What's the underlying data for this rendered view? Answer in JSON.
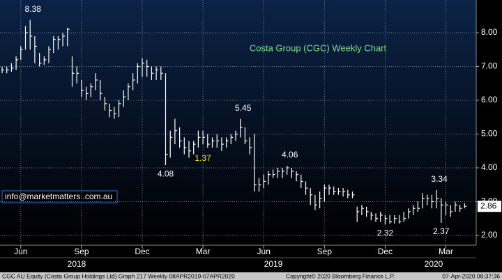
{
  "chart_data": {
    "type": "hlc",
    "title": "Costa Group (CGC) Weekly Chart",
    "annotations": [
      "1.37"
    ],
    "watermark": "info@marketmatters..com.au",
    "footer_left": "CGC AU Equity (Costa Group Holdings Ltd) Graph 217  Weekly 08APR2019-07APR2020",
    "footer_center": "Copyright© 2020 Bloomberg Finance L.P.",
    "footer_right": "07-Apr-2020 08:37:36",
    "x_group_labels": [
      "2018",
      "2019",
      "2020"
    ],
    "categories": [
      null,
      null,
      null,
      null,
      "Jun",
      null,
      null,
      null,
      null,
      null,
      null,
      null,
      null,
      null,
      null,
      null,
      null,
      "Sep",
      null,
      null,
      null,
      null,
      null,
      null,
      null,
      null,
      null,
      null,
      null,
      null,
      "Dec",
      null,
      null,
      null,
      null,
      null,
      null,
      null,
      null,
      null,
      null,
      null,
      null,
      "Mar",
      null,
      null,
      null,
      null,
      null,
      null,
      null,
      null,
      null,
      null,
      null,
      null,
      "Jun",
      null,
      null,
      null,
      null,
      null,
      null,
      null,
      null,
      null,
      null,
      null,
      null,
      "Sep",
      null,
      null,
      null,
      null,
      null,
      null,
      null,
      null,
      null,
      null,
      null,
      null,
      "Dec",
      null,
      null,
      null,
      null,
      null,
      null,
      null,
      null,
      null,
      null,
      null,
      null,
      "Mar",
      null,
      null,
      null,
      null
    ],
    "series": [
      {
        "name": "CGC AU Equity",
        "color": "#ffffff",
        "high": [
          7.0,
          7.0,
          7.1,
          7.3,
          7.6,
          8.2,
          8.38,
          7.9,
          7.4,
          7.3,
          7.6,
          7.9,
          7.9,
          8.0,
          8.15,
          7.3,
          7.0,
          6.6,
          6.4,
          6.5,
          6.8,
          6.6,
          6.1,
          5.9,
          5.8,
          6.0,
          6.3,
          6.5,
          6.8,
          7.1,
          7.25,
          7.2,
          7.0,
          7.0,
          7.0,
          6.8,
          5.1,
          5.45,
          5.2,
          4.9,
          4.8,
          4.8,
          5.1,
          5.1,
          5.0,
          4.9,
          5.0,
          4.9,
          4.9,
          5.0,
          5.1,
          5.45,
          5.2,
          4.9,
          5.0,
          3.7,
          3.8,
          3.9,
          3.95,
          4.0,
          4.0,
          4.06,
          4.0,
          3.9,
          3.8,
          3.6,
          3.4,
          3.2,
          3.3,
          3.5,
          3.5,
          3.45,
          3.4,
          3.4,
          3.35,
          3.3,
          2.85,
          2.9,
          2.85,
          2.7,
          2.65,
          2.7,
          2.6,
          2.6,
          2.6,
          2.6,
          2.7,
          2.8,
          2.9,
          3.0,
          3.25,
          3.2,
          3.2,
          3.34,
          3.1,
          3.0,
          2.9,
          3.0,
          2.9,
          2.95
        ],
        "low": [
          6.8,
          6.8,
          6.85,
          6.9,
          7.2,
          7.5,
          7.5,
          7.1,
          7.0,
          7.05,
          7.1,
          7.4,
          7.5,
          7.6,
          7.6,
          6.4,
          6.5,
          6.1,
          6.0,
          6.1,
          6.3,
          6.0,
          5.7,
          5.5,
          5.45,
          5.5,
          5.8,
          6.0,
          6.3,
          6.5,
          6.7,
          6.7,
          6.6,
          6.6,
          6.6,
          4.08,
          4.3,
          4.7,
          4.6,
          4.4,
          4.3,
          4.4,
          4.6,
          4.7,
          4.6,
          4.6,
          4.6,
          4.5,
          4.6,
          4.7,
          4.8,
          4.9,
          4.7,
          4.4,
          3.3,
          3.3,
          3.4,
          3.5,
          3.7,
          3.7,
          3.7,
          3.8,
          3.7,
          3.6,
          3.4,
          3.2,
          2.9,
          2.75,
          2.8,
          3.0,
          3.2,
          3.2,
          3.2,
          3.15,
          3.1,
          3.1,
          2.4,
          2.6,
          2.55,
          2.45,
          2.4,
          2.4,
          2.32,
          2.35,
          2.35,
          2.35,
          2.4,
          2.5,
          2.6,
          2.7,
          2.8,
          2.9,
          2.8,
          2.8,
          2.37,
          2.6,
          2.55,
          2.7,
          2.7,
          2.8
        ],
        "close": [
          6.9,
          6.9,
          6.95,
          7.2,
          7.5,
          8.0,
          7.9,
          7.6,
          7.1,
          7.2,
          7.5,
          7.8,
          7.8,
          7.9,
          8.1,
          6.8,
          6.8,
          6.3,
          6.2,
          6.4,
          6.6,
          6.2,
          5.9,
          5.7,
          5.6,
          5.9,
          6.1,
          6.4,
          6.6,
          7.0,
          7.1,
          7.0,
          6.8,
          6.9,
          6.8,
          4.4,
          4.9,
          5.1,
          4.8,
          4.6,
          4.5,
          4.7,
          4.9,
          4.9,
          4.7,
          4.8,
          4.8,
          4.7,
          4.8,
          4.9,
          5.0,
          5.2,
          4.8,
          4.6,
          3.5,
          3.5,
          3.6,
          3.8,
          3.8,
          3.9,
          3.9,
          4.0,
          3.9,
          3.8,
          3.6,
          3.4,
          3.2,
          2.9,
          3.1,
          3.4,
          3.4,
          3.3,
          3.3,
          3.3,
          3.2,
          3.2,
          2.7,
          2.8,
          2.7,
          2.6,
          2.5,
          2.6,
          2.5,
          2.4,
          2.5,
          2.4,
          2.5,
          2.7,
          2.8,
          2.8,
          3.1,
          3.1,
          3.0,
          3.1,
          2.9,
          2.9,
          2.7,
          2.9,
          2.8,
          2.86
        ],
        "high_labels": [
          null,
          null,
          null,
          null,
          null,
          null,
          "8.38",
          null,
          null,
          null,
          null,
          null,
          null,
          null,
          null,
          null,
          null,
          null,
          null,
          null,
          null,
          null,
          null,
          null,
          null,
          null,
          null,
          null,
          null,
          null,
          null,
          null,
          null,
          null,
          null,
          null,
          null,
          null,
          null,
          null,
          null,
          null,
          null,
          null,
          null,
          null,
          null,
          null,
          null,
          null,
          null,
          "5.45",
          null,
          null,
          null,
          null,
          null,
          null,
          null,
          null,
          null,
          "4.06",
          null,
          null,
          null,
          null,
          null,
          null,
          null,
          null,
          null,
          null,
          null,
          null,
          null,
          null,
          null,
          null,
          null,
          null,
          null,
          null,
          null,
          null,
          null,
          null,
          null,
          null,
          null,
          null,
          null,
          null,
          null,
          "3.34",
          null,
          null,
          null,
          null,
          null,
          null
        ],
        "low_labels": [
          null,
          null,
          null,
          null,
          null,
          null,
          null,
          null,
          null,
          null,
          null,
          null,
          null,
          null,
          null,
          null,
          null,
          null,
          null,
          null,
          null,
          null,
          null,
          null,
          null,
          null,
          null,
          null,
          null,
          null,
          null,
          null,
          null,
          null,
          null,
          "4.08",
          null,
          null,
          null,
          null,
          null,
          null,
          null,
          null,
          null,
          null,
          null,
          null,
          null,
          null,
          null,
          null,
          null,
          null,
          null,
          null,
          null,
          null,
          null,
          null,
          null,
          null,
          null,
          null,
          null,
          null,
          null,
          null,
          null,
          null,
          null,
          null,
          null,
          null,
          null,
          null,
          null,
          null,
          null,
          null,
          null,
          null,
          "2.32",
          null,
          null,
          null,
          null,
          null,
          null,
          null,
          null,
          null,
          null,
          null,
          "2.37",
          null,
          null,
          null,
          null,
          null
        ]
      }
    ],
    "ylim": [
      1.71,
      8.97
    ],
    "yticks": [
      {
        "value": 2,
        "label": "2.00"
      },
      {
        "value": 3,
        "label": "3.00"
      },
      {
        "value": 4,
        "label": "4.00"
      },
      {
        "value": 5,
        "label": "5.00"
      },
      {
        "value": 6,
        "label": "6.00"
      },
      {
        "value": 7,
        "label": "7.00"
      },
      {
        "value": 8,
        "label": "8.00"
      }
    ],
    "grid": true
  }
}
